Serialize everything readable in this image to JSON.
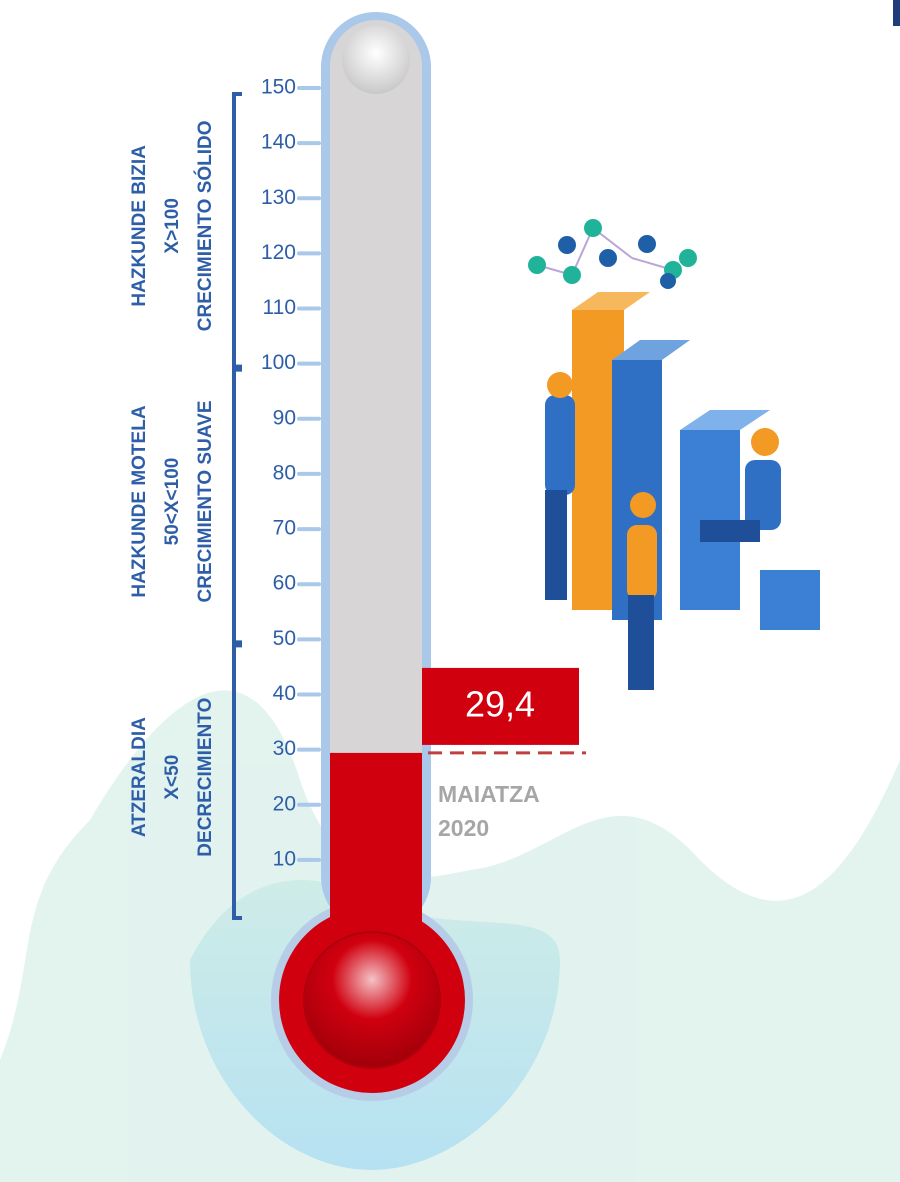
{
  "chart_data": {
    "type": "thermometer",
    "categories": [
      "MAIATZA 2020"
    ],
    "values": [
      29.4
    ],
    "value_labels": [
      "29,4"
    ],
    "color": "#d0000f",
    "ylim": [
      0,
      150
    ],
    "yticks": [
      10,
      20,
      30,
      40,
      50,
      60,
      70,
      80,
      90,
      100,
      110,
      120,
      130,
      140,
      150
    ],
    "bands": [
      {
        "range": [
          0,
          50
        ],
        "lines": [
          "ATZERALDIA",
          "X<50",
          "DECRECIMIENTO"
        ]
      },
      {
        "range": [
          50,
          100
        ],
        "lines": [
          "HAZKUNDE MOTELA",
          "50<X<100",
          "CRECIMIENTO SUAVE"
        ]
      },
      {
        "range": [
          100,
          150
        ],
        "lines": [
          "HAZKUNDE BIZIA",
          "X>100",
          "CRECIMIENTO SÓLIDO"
        ]
      }
    ]
  }
}
